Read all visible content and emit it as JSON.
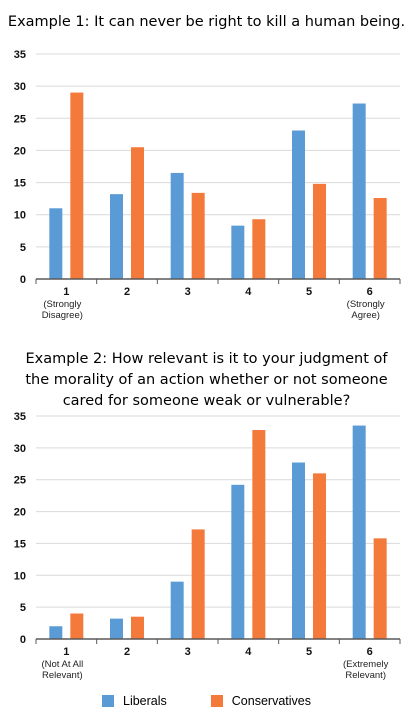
{
  "colors": {
    "liberals": "#5b9bd5",
    "conservatives": "#f47a3b",
    "axis": "#595959",
    "grid": "#d9d9d9"
  },
  "legend": {
    "liberals": "Liberals",
    "conservatives": "Conservatives"
  },
  "chart_data": [
    {
      "type": "bar",
      "title": "Example 1: It can never be right to kill a human being.",
      "categories": [
        "1",
        "2",
        "3",
        "4",
        "5",
        "6"
      ],
      "category_notes": [
        [
          "(Strongly",
          "Disagree)"
        ],
        [],
        [],
        [],
        [],
        [
          "(Strongly",
          "Agree)"
        ]
      ],
      "ylim": [
        0,
        35
      ],
      "yticks": [
        0,
        5,
        10,
        15,
        20,
        25,
        30,
        35
      ],
      "grid": true,
      "legend": "bottom",
      "series": [
        {
          "name": "Liberals",
          "values": [
            11,
            13.2,
            16.5,
            8.3,
            23.1,
            27.3
          ]
        },
        {
          "name": "Conservatives",
          "values": [
            29,
            20.5,
            13.4,
            9.3,
            14.8,
            12.6
          ]
        }
      ]
    },
    {
      "type": "bar",
      "title": "Example 2: How relevant is it to your judgment of the morality of an action whether or not someone cared for someone weak or vulnerable?",
      "title_lines": [
        "Example 2: How relevant is it to your judgment of",
        "the morality of an action whether or not someone",
        "cared for someone weak or vulnerable?"
      ],
      "categories": [
        "1",
        "2",
        "3",
        "4",
        "5",
        "6"
      ],
      "category_notes": [
        [
          "(Not At All",
          "Relevant)"
        ],
        [],
        [],
        [],
        [],
        [
          "(Extremely",
          "Relevant)"
        ]
      ],
      "ylim": [
        0,
        35
      ],
      "yticks": [
        0,
        5,
        10,
        15,
        20,
        25,
        30,
        35
      ],
      "grid": true,
      "legend": "bottom",
      "series": [
        {
          "name": "Liberals",
          "values": [
            2,
            3.2,
            9,
            24.2,
            27.7,
            33.5
          ]
        },
        {
          "name": "Conservatives",
          "values": [
            4,
            3.5,
            17.2,
            32.8,
            26,
            15.8
          ]
        }
      ]
    }
  ]
}
